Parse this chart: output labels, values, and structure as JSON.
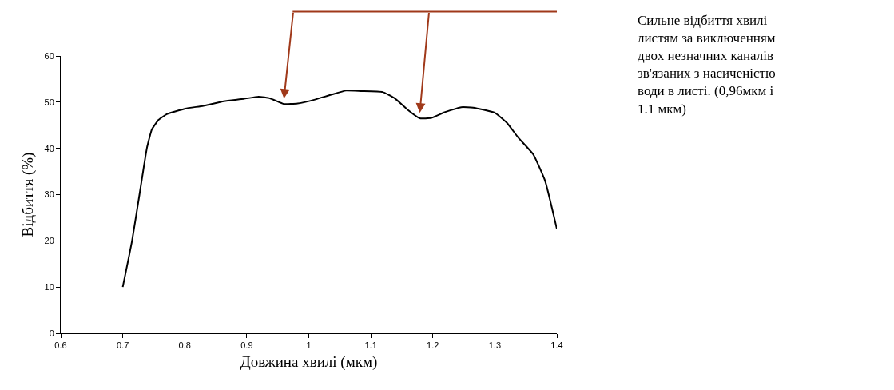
{
  "chart_data": {
    "type": "line",
    "xlabel": "Довжина хвилі (мкм)",
    "ylabel": "Відбиття (%)",
    "annotations": [
      "Сильне відбиття хвилі листям за виключенням двох незначних каналів зв'язаних з насиченістю води в листі. (0,96мкм і 1.1 мкм)"
    ],
    "xlim": [
      0.6,
      1.4
    ],
    "xticks": [
      0.6,
      0.7,
      0.8,
      0.9,
      1,
      1.1,
      1.2,
      1.3,
      1.4
    ],
    "ylim": [
      0,
      60
    ],
    "yticks": [
      0,
      10,
      20,
      30,
      40,
      50,
      60
    ],
    "grid": false,
    "marker": "none",
    "line_style": "solid",
    "series": [
      {
        "color": "#000000",
        "x": [
          0.7,
          0.715,
          0.727,
          0.739,
          0.747,
          0.758,
          0.771,
          0.801,
          0.83,
          0.863,
          0.895,
          0.919,
          0.938,
          0.96,
          0.982,
          1.003,
          1.036,
          1.06,
          1.084,
          1.119,
          1.138,
          1.16,
          1.179,
          1.198,
          1.219,
          1.246,
          1.265,
          1.3,
          1.319,
          1.338,
          1.362,
          1.381,
          1.4
        ],
        "values": [
          10,
          20,
          30,
          40.1,
          44.1,
          46.2,
          47.4,
          48.6,
          49.2,
          50.2,
          50.7,
          51.2,
          50.8,
          49.6,
          49.7,
          50.3,
          51.6,
          52.5,
          52.4,
          52.2,
          50.9,
          48.3,
          46.5,
          46.6,
          47.8,
          48.9,
          48.8,
          47.7,
          45.6,
          42.3,
          38.7,
          33.0,
          22.6
        ]
      }
    ]
  }
}
